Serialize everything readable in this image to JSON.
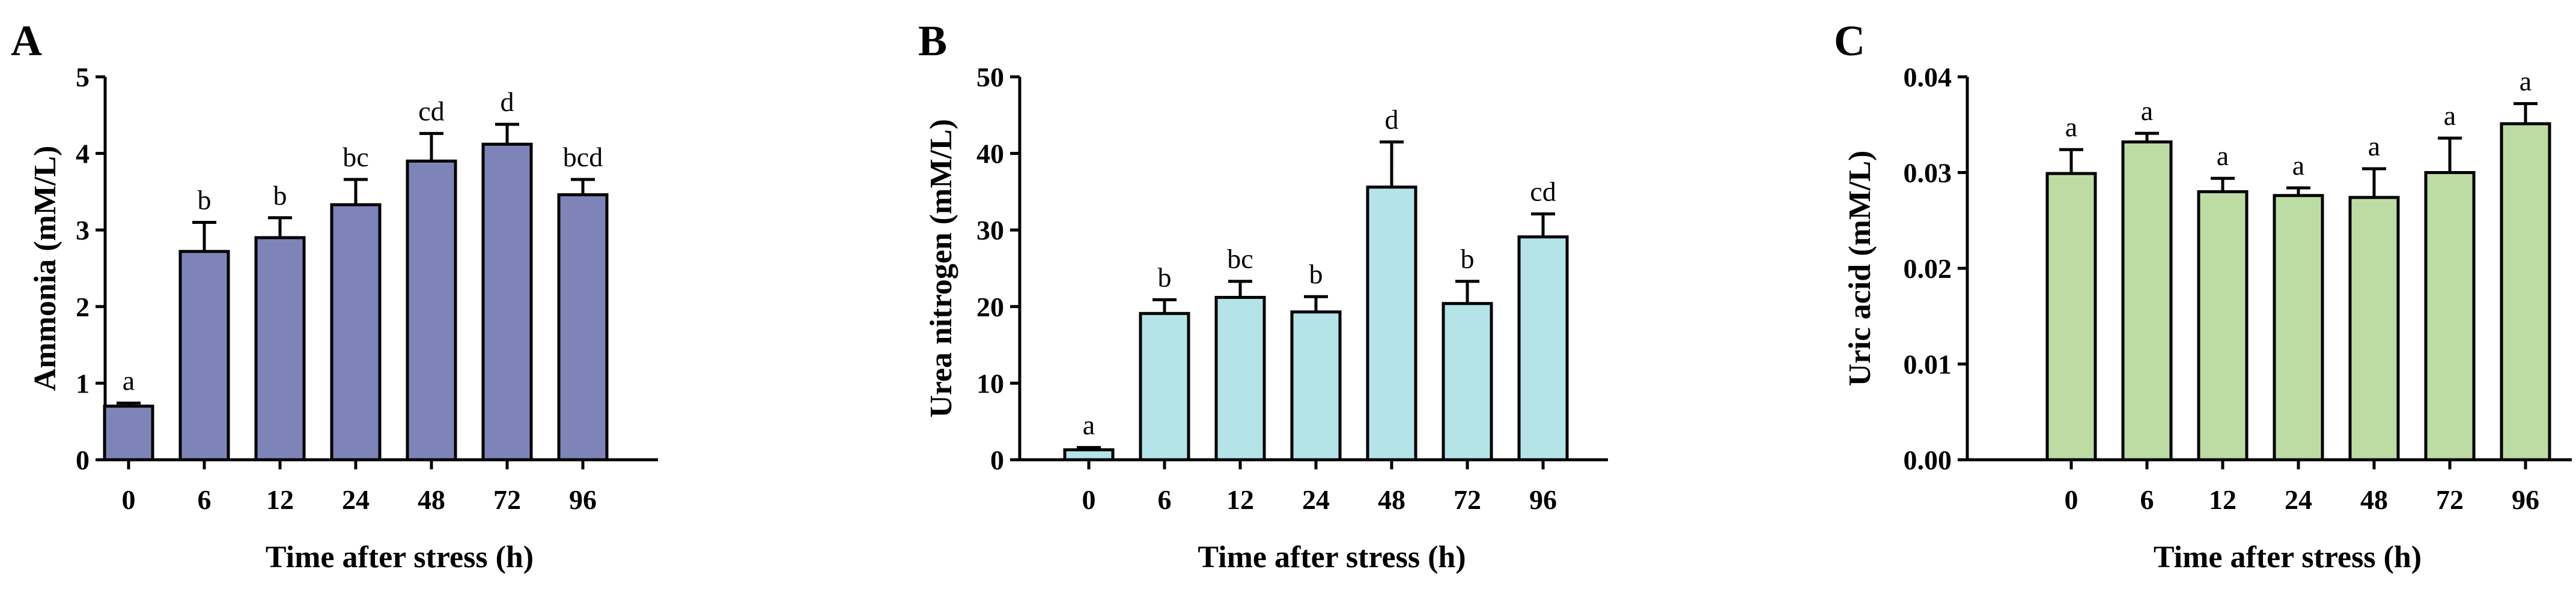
{
  "chart_data": [
    {
      "type": "bar",
      "panel": "A",
      "categories": [
        "0",
        "6",
        "12",
        "24",
        "48",
        "72",
        "96"
      ],
      "values": [
        0.7,
        2.72,
        2.9,
        3.33,
        3.9,
        4.12,
        3.46
      ],
      "errors": [
        0.04,
        0.38,
        0.26,
        0.33,
        0.36,
        0.26,
        0.2
      ],
      "significance": [
        "a",
        "b",
        "b",
        "bc",
        "cd",
        "d",
        "bcd"
      ],
      "xlabel": "Time after stress (h)",
      "ylabel": "Ammonia (mM/L)",
      "ylim": [
        0,
        5
      ],
      "yticks": [
        "0",
        "1",
        "2",
        "3",
        "4",
        "5"
      ],
      "color": "#7f84b8"
    },
    {
      "type": "bar",
      "panel": "B",
      "categories": [
        "0",
        "6",
        "12",
        "24",
        "48",
        "72",
        "96"
      ],
      "values": [
        1.3,
        19.1,
        21.2,
        19.3,
        35.6,
        20.4,
        29.1
      ],
      "errors": [
        0.3,
        1.8,
        2.1,
        2.0,
        5.9,
        2.9,
        3.0
      ],
      "significance": [
        "a",
        "b",
        "bc",
        "b",
        "d",
        "b",
        "cd"
      ],
      "xlabel": "Time after stress (h)",
      "ylabel": "Urea nitrogen (mM/L)",
      "ylim": [
        0,
        50
      ],
      "yticks": [
        "0",
        "10",
        "20",
        "30",
        "40",
        "50"
      ],
      "color": "#b4e4e8"
    },
    {
      "type": "bar",
      "panel": "C",
      "categories": [
        "0",
        "6",
        "12",
        "24",
        "48",
        "72",
        "96"
      ],
      "values": [
        0.0299,
        0.0332,
        0.028,
        0.0276,
        0.0274,
        0.03,
        0.0351
      ],
      "errors": [
        0.0025,
        0.0009,
        0.0014,
        0.0008,
        0.003,
        0.0036,
        0.0021
      ],
      "significance": [
        "a",
        "a",
        "a",
        "a",
        "a",
        "a",
        "a"
      ],
      "xlabel": "Time after stress (h)",
      "ylabel": "Uric acid (mM/L)",
      "ylim": [
        0,
        0.04
      ],
      "yticks": [
        "0.00",
        "0.01",
        "0.02",
        "0.03",
        "0.04"
      ],
      "color": "#bcdca4"
    }
  ]
}
